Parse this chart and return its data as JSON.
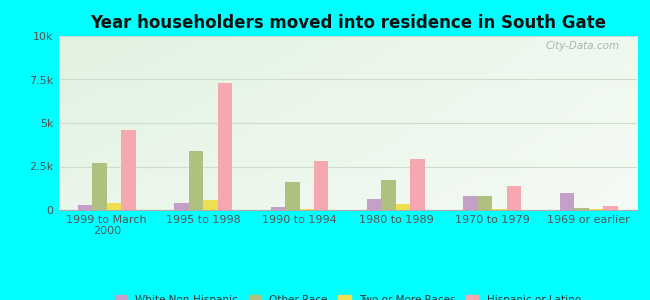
{
  "title": "Year householders moved into residence in South Gate",
  "categories": [
    "1999 to March\n2000",
    "1995 to 1998",
    "1990 to 1994",
    "1980 to 1989",
    "1970 to 1979",
    "1969 or earlier"
  ],
  "series": {
    "White Non-Hispanic": [
      280,
      420,
      180,
      620,
      820,
      980
    ],
    "Other Race": [
      2700,
      3400,
      1600,
      1700,
      800,
      130
    ],
    "Two or More Races": [
      380,
      580,
      80,
      330,
      80,
      70
    ],
    "Hispanic or Latino": [
      4600,
      7300,
      2800,
      2950,
      1400,
      220
    ]
  },
  "colors": {
    "White Non-Hispanic": "#c4a0c8",
    "Other Race": "#b0c080",
    "Two or More Races": "#eedf50",
    "Hispanic or Latino": "#f5a8b0"
  },
  "ylim": [
    0,
    10000
  ],
  "yticks": [
    0,
    2500,
    5000,
    7500,
    10000
  ],
  "ytick_labels": [
    "0",
    "2.5k",
    "5k",
    "7.5k",
    "10k"
  ],
  "background_color": "#00ffff",
  "bar_width": 0.15,
  "watermark": "City-Data.com",
  "title_fontsize": 12,
  "tick_fontsize": 8,
  "legend_fontsize": 7.5
}
